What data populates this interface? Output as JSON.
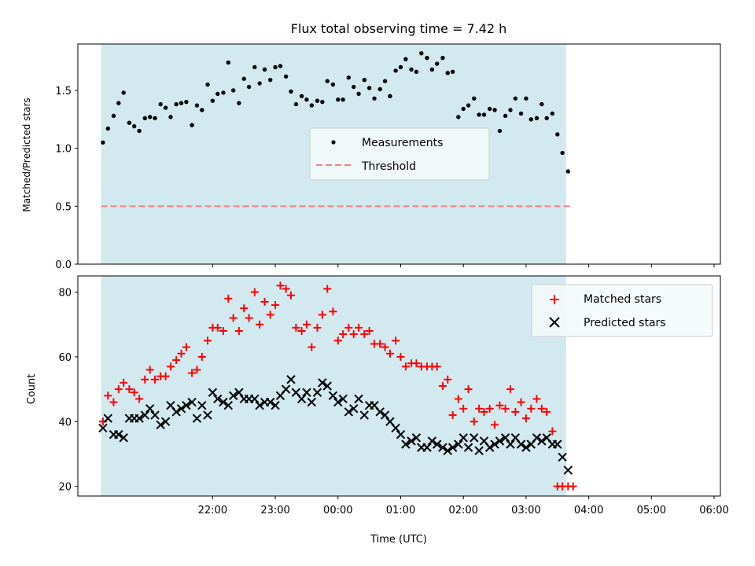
{
  "chart_data": [
    {
      "type": "scatter",
      "title": "Flux total observing time = 7.42 h",
      "xlabel": "",
      "ylabel": "Matched/Predicted stars",
      "ylim": [
        0,
        1.9
      ],
      "yticks": [
        "0.0",
        "0.5",
        "1.0",
        "1.5"
      ],
      "xlim_hours": [
        -2.15,
        8.1
      ],
      "shaded_span_hours": [
        -1.78,
        5.64
      ],
      "shade_color": "#d3e9f0",
      "legend_position": "center",
      "series": [
        {
          "name": "Measurements",
          "style": "dot",
          "color": "#000000",
          "x_hours": [
            -1.75,
            -1.67,
            -1.58,
            -1.5,
            -1.42,
            -1.33,
            -1.25,
            -1.17,
            -1.08,
            -1.0,
            -0.92,
            -0.83,
            -0.75,
            -0.67,
            -0.58,
            -0.5,
            -0.42,
            -0.33,
            -0.25,
            -0.17,
            -0.08,
            0.0,
            0.08,
            0.17,
            0.25,
            0.33,
            0.42,
            0.5,
            0.58,
            0.67,
            0.75,
            0.83,
            0.92,
            1.0,
            1.08,
            1.17,
            1.25,
            1.33,
            1.42,
            1.5,
            1.58,
            1.67,
            1.75,
            1.83,
            1.92,
            2.0,
            2.08,
            2.17,
            2.25,
            2.33,
            2.42,
            2.5,
            2.58,
            2.67,
            2.75,
            2.83,
            2.92,
            3.0,
            3.08,
            3.17,
            3.25,
            3.33,
            3.42,
            3.5,
            3.58,
            3.67,
            3.75,
            3.83,
            3.92,
            4.0,
            4.08,
            4.17,
            4.25,
            4.33,
            4.42,
            4.5,
            4.58,
            4.67,
            4.75,
            4.83,
            4.92,
            5.0,
            5.08,
            5.17,
            5.25,
            5.33,
            5.42,
            5.5,
            5.58,
            5.67
          ],
          "values": [
            1.05,
            1.17,
            1.28,
            1.39,
            1.48,
            1.22,
            1.19,
            1.15,
            1.26,
            1.27,
            1.26,
            1.38,
            1.35,
            1.27,
            1.38,
            1.39,
            1.4,
            1.2,
            1.37,
            1.33,
            1.55,
            1.41,
            1.47,
            1.48,
            1.74,
            1.5,
            1.39,
            1.6,
            1.53,
            1.7,
            1.56,
            1.68,
            1.59,
            1.7,
            1.71,
            1.62,
            1.49,
            1.38,
            1.45,
            1.42,
            1.37,
            1.41,
            1.4,
            1.58,
            1.55,
            1.42,
            1.42,
            1.61,
            1.53,
            1.47,
            1.59,
            1.52,
            1.43,
            1.51,
            1.58,
            1.45,
            1.67,
            1.7,
            1.77,
            1.68,
            1.66,
            1.82,
            1.78,
            1.68,
            1.73,
            1.78,
            1.65,
            1.66,
            1.27,
            1.34,
            1.37,
            1.43,
            1.29,
            1.29,
            1.34,
            1.33,
            1.15,
            1.28,
            1.33,
            1.43,
            1.3,
            1.43,
            1.25,
            1.26,
            1.38,
            1.26,
            1.3,
            1.12,
            0.96,
            0.8
          ]
        },
        {
          "name": "Threshold",
          "style": "dashed",
          "color": "#f08080",
          "value": 0.5
        }
      ]
    },
    {
      "type": "scatter",
      "title": "",
      "xlabel": "Time (UTC)",
      "ylabel": "Count",
      "ylim": [
        17,
        85
      ],
      "yticks": [
        "20",
        "40",
        "60",
        "80"
      ],
      "xticks": [
        "22:00",
        "23:00",
        "00:00",
        "01:00",
        "02:00",
        "03:00",
        "04:00",
        "05:00",
        "06:00"
      ],
      "xlim_hours": [
        -2.15,
        8.1
      ],
      "shaded_span_hours": [
        -1.78,
        5.64
      ],
      "shade_color": "#d3e9f0",
      "legend_position": "upper right",
      "series": [
        {
          "name": "Matched stars",
          "style": "plus",
          "color": "#ff0000",
          "x_hours": [
            -1.75,
            -1.67,
            -1.58,
            -1.5,
            -1.42,
            -1.33,
            -1.25,
            -1.17,
            -1.08,
            -1.0,
            -0.92,
            -0.83,
            -0.75,
            -0.67,
            -0.58,
            -0.5,
            -0.42,
            -0.33,
            -0.25,
            -0.17,
            -0.08,
            0.0,
            0.08,
            0.17,
            0.25,
            0.33,
            0.42,
            0.5,
            0.58,
            0.67,
            0.75,
            0.83,
            0.92,
            1.0,
            1.08,
            1.17,
            1.25,
            1.33,
            1.42,
            1.5,
            1.58,
            1.67,
            1.75,
            1.83,
            1.92,
            2.0,
            2.08,
            2.17,
            2.25,
            2.33,
            2.42,
            2.5,
            2.58,
            2.67,
            2.75,
            2.83,
            2.92,
            3.0,
            3.08,
            3.17,
            3.25,
            3.33,
            3.42,
            3.5,
            3.58,
            3.67,
            3.75,
            3.83,
            3.92,
            4.0,
            4.08,
            4.17,
            4.25,
            4.33,
            4.42,
            4.5,
            4.58,
            4.67,
            4.75,
            4.83,
            4.92,
            5.0,
            5.08,
            5.17,
            5.25,
            5.33,
            5.42,
            5.5,
            5.58,
            5.67,
            5.75
          ],
          "values": [
            40,
            48,
            46,
            50,
            52,
            50,
            49,
            47,
            53,
            56,
            53,
            54,
            54,
            57,
            59,
            61,
            63,
            55,
            56,
            60,
            65,
            69,
            69,
            68,
            78,
            72,
            68,
            75,
            72,
            80,
            70,
            77,
            73,
            76,
            82,
            81,
            79,
            69,
            68,
            70,
            63,
            69,
            73,
            81,
            74,
            65,
            67,
            69,
            67,
            69,
            67,
            68,
            64,
            64,
            63,
            61,
            65,
            60,
            57,
            58,
            58,
            57,
            57,
            57,
            57,
            51,
            53,
            42,
            47,
            44,
            50,
            40,
            44,
            43,
            44,
            39,
            45,
            44,
            50,
            43,
            46,
            41,
            44,
            47,
            44,
            43,
            37,
            20,
            20,
            20,
            20
          ]
        },
        {
          "name": "Predicted stars",
          "style": "x",
          "color": "#000000",
          "x_hours": [
            -1.75,
            -1.67,
            -1.58,
            -1.5,
            -1.42,
            -1.33,
            -1.25,
            -1.17,
            -1.08,
            -1.0,
            -0.92,
            -0.83,
            -0.75,
            -0.67,
            -0.58,
            -0.5,
            -0.42,
            -0.33,
            -0.25,
            -0.17,
            -0.08,
            0.0,
            0.08,
            0.17,
            0.25,
            0.33,
            0.42,
            0.5,
            0.58,
            0.67,
            0.75,
            0.83,
            0.92,
            1.0,
            1.08,
            1.17,
            1.25,
            1.33,
            1.42,
            1.5,
            1.58,
            1.67,
            1.75,
            1.83,
            1.92,
            2.0,
            2.08,
            2.17,
            2.25,
            2.33,
            2.42,
            2.5,
            2.58,
            2.67,
            2.75,
            2.83,
            2.92,
            3.0,
            3.08,
            3.17,
            3.25,
            3.33,
            3.42,
            3.5,
            3.58,
            3.67,
            3.75,
            3.83,
            3.92,
            4.0,
            4.08,
            4.17,
            4.25,
            4.33,
            4.42,
            4.5,
            4.58,
            4.67,
            4.75,
            4.83,
            4.92,
            5.0,
            5.08,
            5.17,
            5.25,
            5.33,
            5.42,
            5.5,
            5.58,
            5.67
          ],
          "values": [
            38,
            41,
            36,
            36,
            35,
            41,
            41,
            41,
            42,
            44,
            42,
            39,
            40,
            45,
            43,
            44,
            45,
            46,
            41,
            45,
            42,
            49,
            47,
            46,
            45,
            48,
            49,
            47,
            47,
            47,
            45,
            46,
            46,
            45,
            48,
            50,
            53,
            49,
            47,
            49,
            46,
            49,
            52,
            51,
            48,
            46,
            47,
            43,
            44,
            47,
            42,
            45,
            45,
            43,
            42,
            40,
            38,
            36,
            33,
            34,
            35,
            32,
            32,
            34,
            33,
            32,
            31,
            32,
            33,
            35,
            32,
            35,
            31,
            34,
            32,
            33,
            34,
            35,
            33,
            35,
            33,
            32,
            33,
            35,
            34,
            35,
            33,
            33,
            29,
            25
          ]
        }
      ]
    }
  ]
}
